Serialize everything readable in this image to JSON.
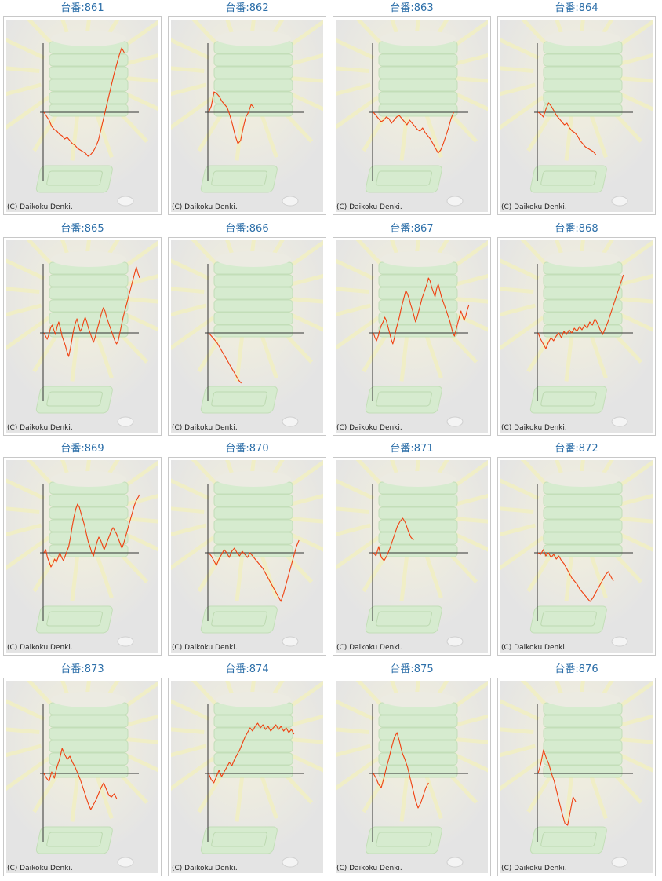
{
  "copyright": "(C) Daikoku Denki.",
  "colors": {
    "line": "#f04010",
    "axis": "#333333",
    "title": "#2b6ea8",
    "background": "#e4e4e4"
  },
  "chart_data": [
    {
      "type": "line",
      "title": "台番:861",
      "values": [
        0,
        -5,
        -10,
        -18,
        -22,
        -24,
        -28,
        -30,
        -34,
        -32,
        -36,
        -40,
        -42,
        -46,
        -48,
        -50,
        -52,
        -56,
        -54,
        -50,
        -44,
        -36,
        -22,
        -8,
        6,
        20,
        34,
        48,
        60,
        72,
        82,
        76
      ]
    },
    {
      "type": "line",
      "title": "台番:862",
      "values": [
        0,
        8,
        26,
        24,
        20,
        14,
        10,
        6,
        -4,
        -16,
        -30,
        -40,
        -36,
        -20,
        -6,
        0,
        10,
        6
      ]
    },
    {
      "type": "line",
      "title": "台番:863",
      "values": [
        0,
        -4,
        -8,
        -12,
        -10,
        -6,
        -8,
        -14,
        -10,
        -6,
        -4,
        -8,
        -12,
        -16,
        -10,
        -14,
        -18,
        -22,
        -24,
        -20,
        -26,
        -30,
        -34,
        -40,
        -46,
        -52,
        -48,
        -40,
        -30,
        -20,
        -8,
        0
      ]
    },
    {
      "type": "line",
      "title": "台番:864",
      "values": [
        0,
        -2,
        -6,
        4,
        12,
        8,
        2,
        -4,
        -8,
        -12,
        -16,
        -14,
        -20,
        -24,
        -26,
        -30,
        -36,
        -40,
        -44,
        -46,
        -48,
        -50,
        -54
      ]
    },
    {
      "type": "line",
      "title": "台番:865",
      "values": [
        0,
        -4,
        -8,
        -2,
        6,
        10,
        4,
        -2,
        8,
        14,
        6,
        -4,
        -10,
        -16,
        -24,
        -30,
        -20,
        -8,
        4,
        12,
        18,
        10,
        2,
        6,
        14,
        20,
        14,
        6,
        0,
        -6,
        -12,
        -6,
        2,
        10,
        18,
        26,
        32,
        28,
        20,
        14,
        8,
        2,
        -4,
        -10,
        -14,
        -10,
        0,
        10,
        20,
        28,
        36,
        44,
        52,
        60,
        68,
        76,
        84,
        76,
        70
      ]
    },
    {
      "type": "line",
      "title": "台番:866",
      "values": [
        0,
        -4,
        -8,
        -12,
        -18,
        -24,
        -30,
        -36,
        -42,
        -48,
        -54,
        -60,
        -64
      ]
    },
    {
      "type": "line",
      "title": "台番:867",
      "values": [
        0,
        -6,
        -10,
        -4,
        4,
        10,
        14,
        20,
        16,
        8,
        0,
        -8,
        -14,
        -6,
        4,
        12,
        20,
        30,
        38,
        46,
        54,
        50,
        44,
        36,
        30,
        22,
        14,
        20,
        28,
        36,
        44,
        50,
        56,
        62,
        70,
        66,
        58,
        52,
        46,
        56,
        62,
        54,
        46,
        40,
        34,
        28,
        22,
        16,
        8,
        0,
        -4,
        4,
        12,
        20,
        28,
        22,
        16,
        22,
        30,
        36
      ]
    },
    {
      "type": "line",
      "title": "台番:868",
      "values": [
        0,
        -8,
        -14,
        -20,
        -12,
        -6,
        -10,
        -4,
        0,
        -6,
        2,
        -2,
        4,
        0,
        6,
        2,
        8,
        4,
        10,
        6,
        14,
        10,
        18,
        12,
        4,
        -2,
        6,
        14,
        24,
        34,
        44,
        54,
        64,
        74
      ]
    },
    {
      "type": "line",
      "title": "台番:869",
      "values": [
        0,
        4,
        -6,
        -12,
        -18,
        -14,
        -8,
        -12,
        -6,
        0,
        -6,
        -10,
        -4,
        2,
        8,
        20,
        34,
        46,
        56,
        62,
        58,
        50,
        42,
        34,
        24,
        14,
        8,
        0,
        -4,
        6,
        14,
        20,
        16,
        10,
        4,
        10,
        16,
        22,
        28,
        32,
        28,
        24,
        18,
        12,
        6,
        12,
        20,
        28,
        36,
        44,
        52,
        60,
        66,
        70,
        74
      ]
    },
    {
      "type": "line",
      "title": "台番:870",
      "values": [
        0,
        -4,
        -10,
        -16,
        -8,
        -2,
        4,
        0,
        -6,
        2,
        6,
        0,
        -4,
        2,
        -2,
        -6,
        0,
        -4,
        -8,
        -12,
        -16,
        -20,
        -26,
        -32,
        -38,
        -44,
        -50,
        -56,
        -62,
        -52,
        -40,
        -28,
        -16,
        -4,
        8,
        16
      ]
    },
    {
      "type": "line",
      "title": "台番:871",
      "values": [
        0,
        -4,
        8,
        -6,
        -10,
        -4,
        4,
        14,
        24,
        34,
        40,
        44,
        38,
        28,
        20,
        16
      ]
    },
    {
      "type": "line",
      "title": "台番:872",
      "values": [
        0,
        -2,
        4,
        -4,
        0,
        -6,
        -2,
        -8,
        -4,
        -10,
        -14,
        -20,
        -26,
        -32,
        -36,
        -40,
        -46,
        -50,
        -54,
        -58,
        -62,
        -58,
        -52,
        -46,
        -40,
        -34,
        -28,
        -24,
        -30,
        -36
      ]
    },
    {
      "type": "line",
      "title": "台番:873",
      "values": [
        0,
        -6,
        -10,
        2,
        -6,
        8,
        18,
        32,
        24,
        18,
        22,
        14,
        8,
        0,
        -8,
        -18,
        -28,
        -38,
        -46,
        -40,
        -34,
        -26,
        -18,
        -12,
        -20,
        -28,
        -30,
        -26,
        -32
      ]
    },
    {
      "type": "line",
      "title": "台番:874",
      "values": [
        0,
        -8,
        -12,
        -4,
        4,
        -4,
        2,
        8,
        14,
        10,
        18,
        24,
        30,
        38,
        46,
        52,
        58,
        54,
        60,
        64,
        58,
        62,
        56,
        60,
        54,
        58,
        62,
        56,
        60,
        54,
        58,
        52,
        56,
        50
      ]
    },
    {
      "type": "line",
      "title": "台番:875",
      "values": [
        0,
        -6,
        -14,
        -18,
        -6,
        8,
        20,
        34,
        46,
        52,
        40,
        26,
        18,
        8,
        -6,
        -20,
        -34,
        -44,
        -38,
        -28,
        -18,
        -12
      ]
    },
    {
      "type": "line",
      "title": "台番:876",
      "values": [
        0,
        12,
        30,
        20,
        12,
        0,
        -10,
        -24,
        -38,
        -52,
        -64,
        -66,
        -48,
        -30,
        -36
      ]
    }
  ]
}
